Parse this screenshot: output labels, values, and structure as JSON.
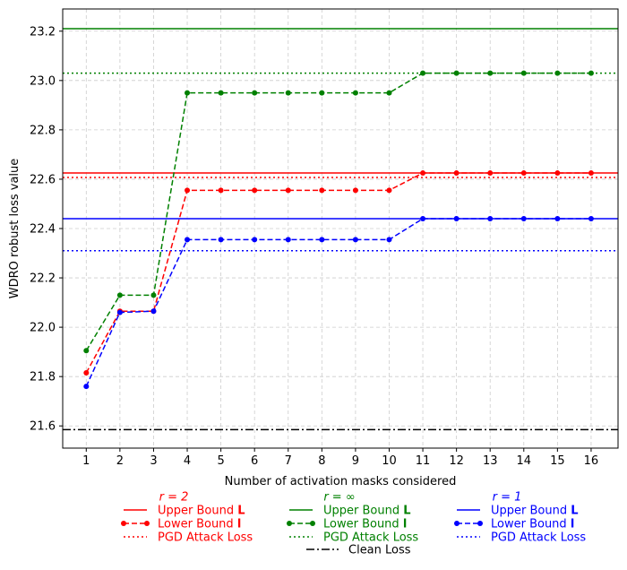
{
  "chart_data": {
    "type": "line",
    "xlabel": "Number of activation masks considered",
    "ylabel": "WDRO robust loss value",
    "x": [
      1,
      2,
      3,
      4,
      5,
      6,
      7,
      8,
      9,
      10,
      11,
      12,
      13,
      14,
      15,
      16
    ],
    "xlim": [
      0.3,
      16.8
    ],
    "ylim": [
      21.51,
      23.29
    ],
    "yticks": [
      21.6,
      21.8,
      22.0,
      22.2,
      22.4,
      22.6,
      22.8,
      23.0,
      23.2
    ],
    "grid": true,
    "legend_placement": "bottom",
    "groups": [
      {
        "title": "r = 2",
        "color": "#ff0000",
        "upper_bound_label": "Upper Bound L",
        "lower_bound_label": "Lower Bound l",
        "pgd_label": "PGD Attack Loss",
        "upper_bound": 22.625,
        "pgd_attack_loss": 22.607,
        "lower_bound": [
          21.815,
          22.065,
          22.065,
          22.555,
          22.555,
          22.555,
          22.555,
          22.555,
          22.555,
          22.555,
          22.625,
          22.625,
          22.625,
          22.625,
          22.625,
          22.625
        ]
      },
      {
        "title": "r = ∞",
        "color": "#008000",
        "upper_bound_label": "Upper Bound L",
        "lower_bound_label": "Lower Bound l",
        "pgd_label": "PGD Attack Loss",
        "upper_bound": 23.21,
        "pgd_attack_loss": 23.03,
        "lower_bound": [
          21.905,
          22.13,
          22.13,
          22.95,
          22.95,
          22.95,
          22.95,
          22.95,
          22.95,
          22.95,
          23.03,
          23.03,
          23.03,
          23.03,
          23.03,
          23.03
        ]
      },
      {
        "title": "r = 1",
        "color": "#0000ff",
        "upper_bound_label": "Upper Bound L",
        "lower_bound_label": "Lower Bound l",
        "pgd_label": "PGD Attack Loss",
        "upper_bound": 22.44,
        "pgd_attack_loss": 22.31,
        "lower_bound": [
          21.76,
          22.06,
          22.065,
          22.355,
          22.355,
          22.355,
          22.355,
          22.355,
          22.355,
          22.355,
          22.44,
          22.44,
          22.44,
          22.44,
          22.44,
          22.44
        ]
      }
    ],
    "clean_loss": {
      "label": "Clean Loss",
      "value": 21.585,
      "color": "#000000"
    }
  }
}
